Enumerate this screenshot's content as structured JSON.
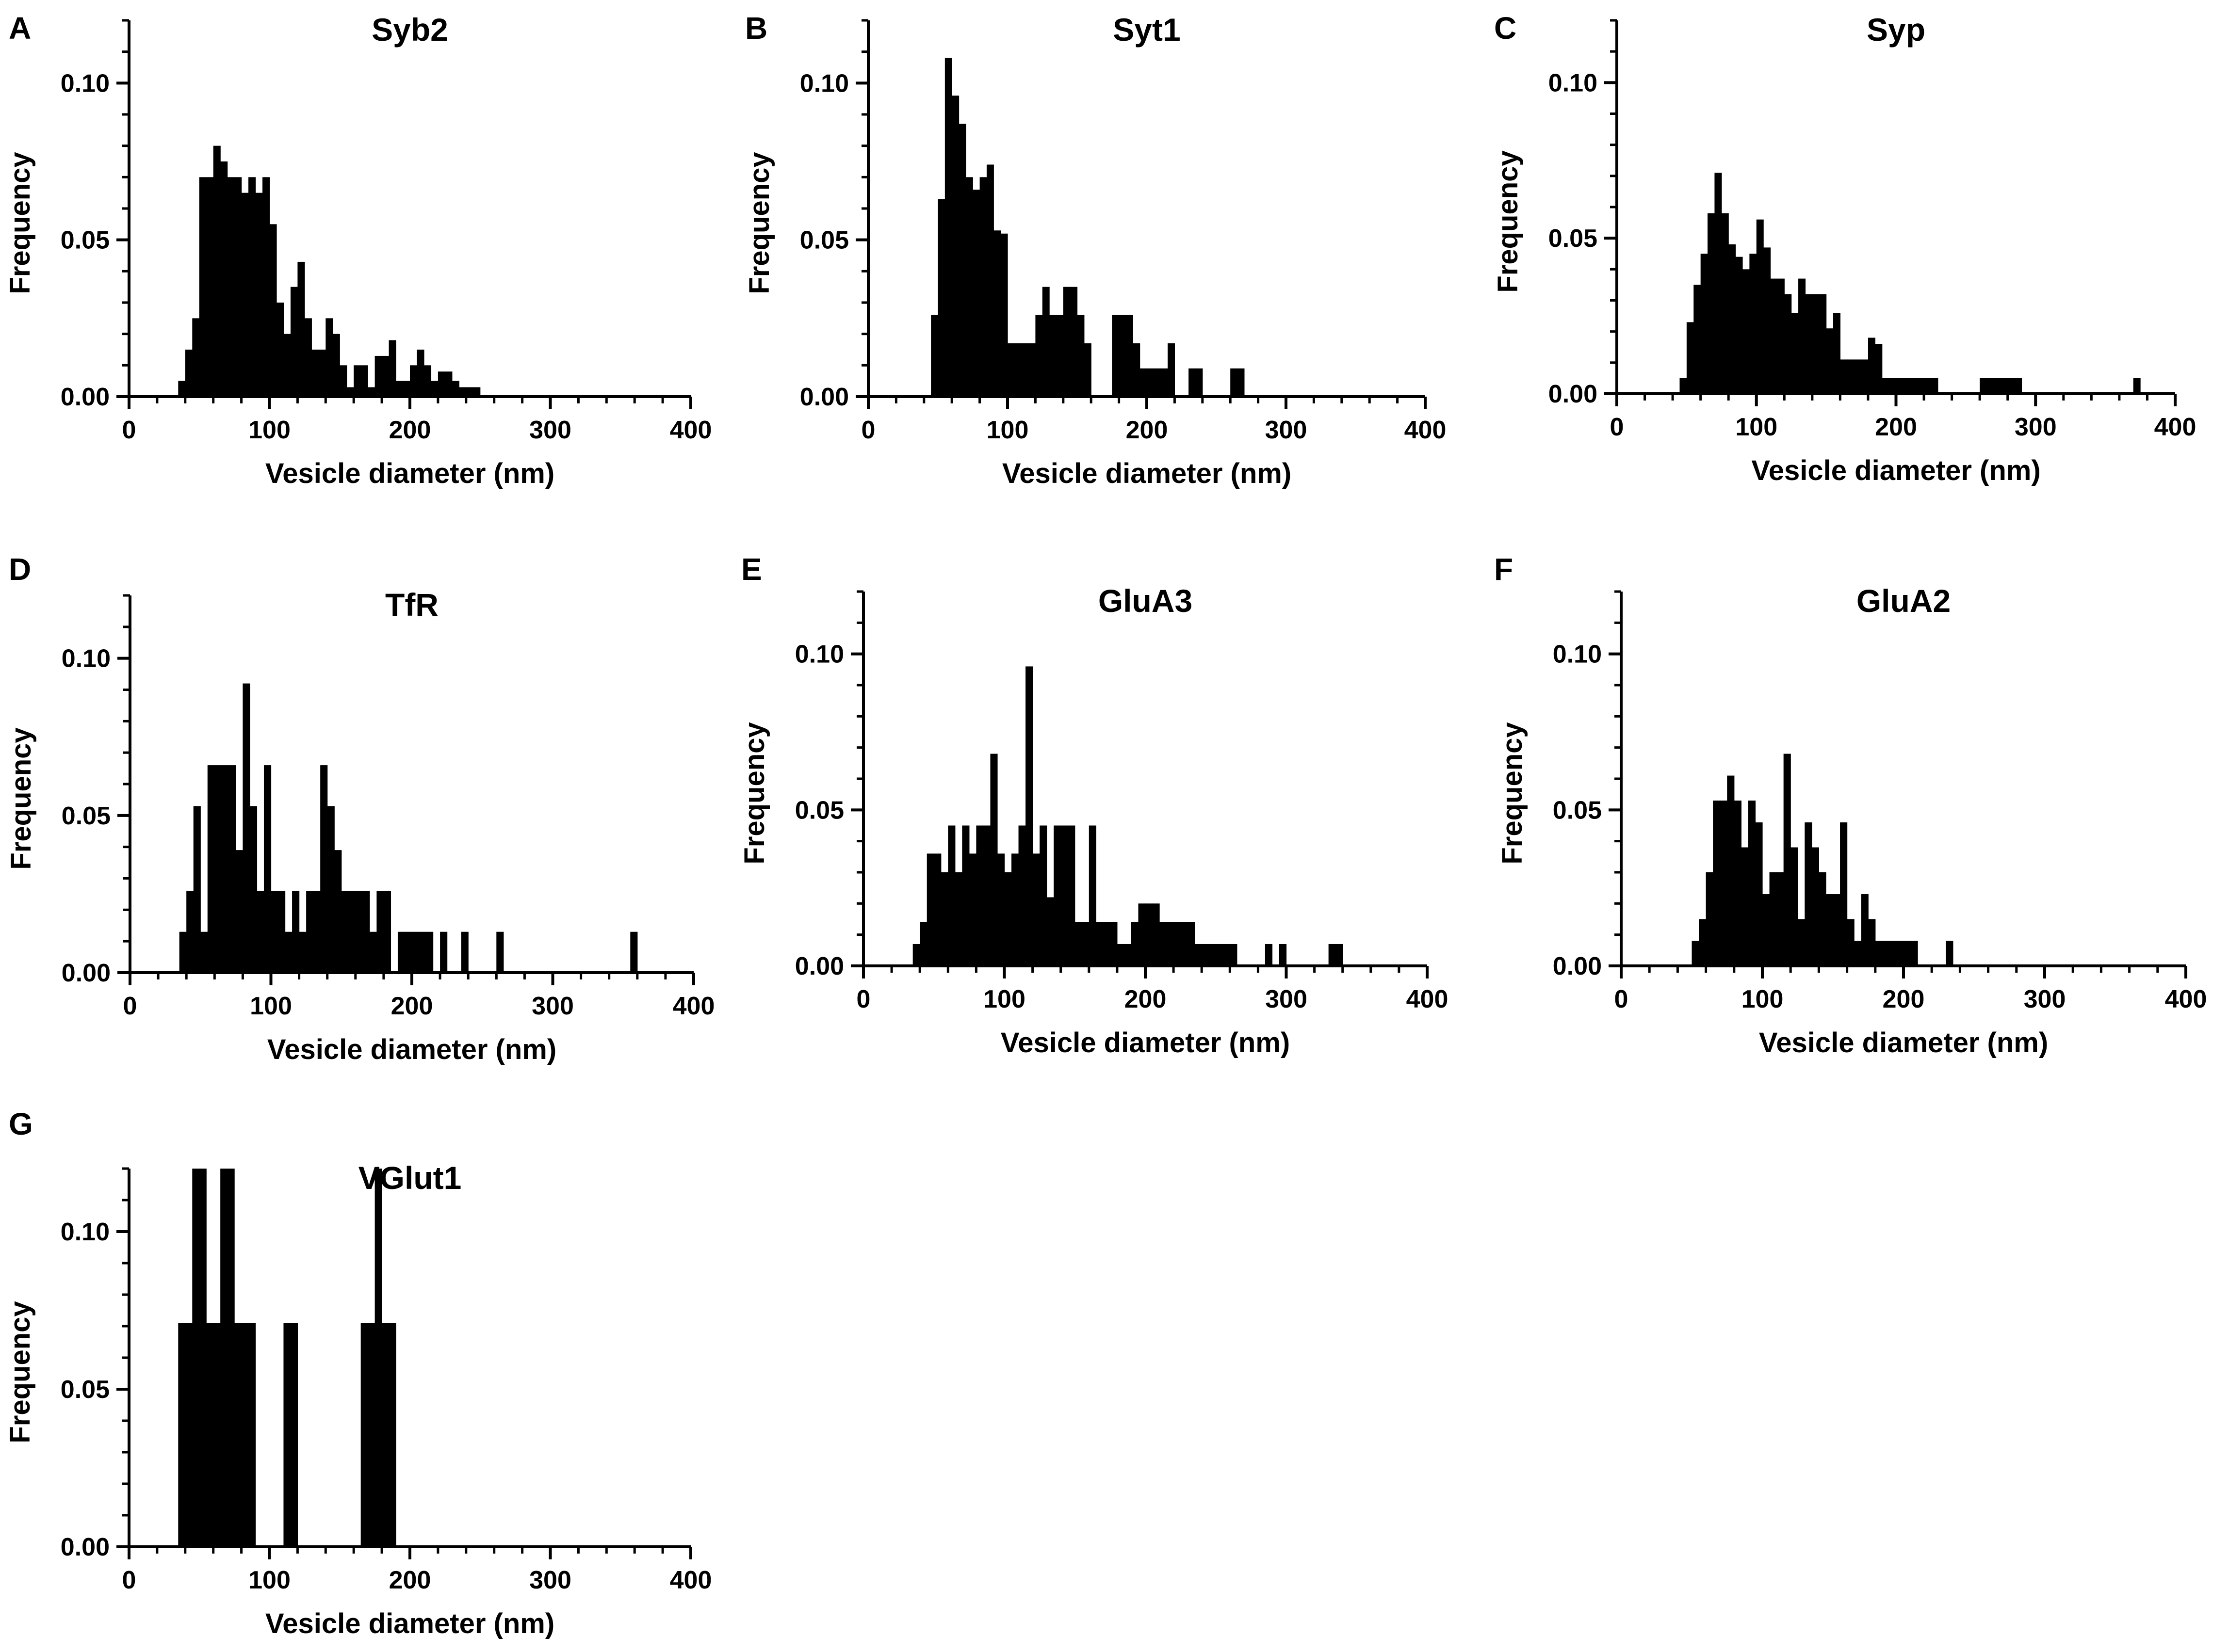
{
  "figure": {
    "background": "#ffffff",
    "bar_color": "#000000",
    "axis_color": "#000000"
  },
  "chart_data": [
    {
      "panel": "A",
      "title": "Syb2",
      "type": "bar",
      "xlabel": "Vesicle diameter (nm)",
      "ylabel": "Frequency",
      "xlim": [
        0,
        400
      ],
      "ylim": [
        0,
        0.12
      ],
      "xticks": [
        0,
        100,
        200,
        300,
        400
      ],
      "xtick_labels": [
        "0",
        "100",
        "200",
        "300",
        "400"
      ],
      "yticks": [
        0,
        0.05,
        0.1
      ],
      "ytick_labels": [
        "0.00",
        "0.05",
        "0.10"
      ],
      "bin_start": 35,
      "bin_width": 5,
      "values": [
        0.005,
        0.015,
        0.025,
        0.07,
        0.07,
        0.08,
        0.075,
        0.07,
        0.07,
        0.065,
        0.07,
        0.065,
        0.07,
        0.055,
        0.03,
        0.02,
        0.035,
        0.043,
        0.025,
        0.015,
        0.015,
        0.025,
        0.02,
        0.01,
        0.003,
        0.01,
        0.01,
        0.003,
        0.013,
        0.013,
        0.018,
        0.005,
        0.005,
        0.01,
        0.015,
        0.01,
        0.005,
        0.008,
        0.008,
        0.005,
        0.003,
        0.003,
        0.003
      ]
    },
    {
      "panel": "B",
      "title": "Syt1",
      "type": "bar",
      "xlabel": "Vesicle diameter (nm)",
      "ylabel": "Frequency",
      "xlim": [
        0,
        400
      ],
      "ylim": [
        0,
        0.12
      ],
      "xticks": [
        0,
        100,
        200,
        300,
        400
      ],
      "xtick_labels": [
        "0",
        "100",
        "200",
        "300",
        "400"
      ],
      "yticks": [
        0,
        0.05,
        0.1
      ],
      "ytick_labels": [
        "0.00",
        "0.05",
        "0.10"
      ],
      "bin_start": 45,
      "bin_width": 5,
      "values": [
        0.026,
        0.063,
        0.108,
        0.096,
        0.087,
        0.07,
        0.066,
        0.07,
        0.074,
        0.053,
        0.052,
        0.017,
        0.017,
        0.017,
        0.017,
        0.026,
        0.035,
        0.026,
        0.026,
        0.035,
        0.035,
        0.026,
        0.017,
        0.0,
        0.0,
        0.0,
        0.026,
        0.026,
        0.026,
        0.017,
        0.009,
        0.009,
        0.009,
        0.009,
        0.017,
        0.0,
        0.0,
        0.009,
        0.009,
        0.0,
        0.0,
        0.0,
        0.0,
        0.009,
        0.009
      ]
    },
    {
      "panel": "C",
      "title": "Syp",
      "type": "bar",
      "xlabel": "Vesicle diameter (nm)",
      "ylabel": "Frequency",
      "xlim": [
        0,
        400
      ],
      "ylim": [
        0,
        0.12
      ],
      "xticks": [
        0,
        100,
        200,
        300,
        400
      ],
      "xtick_labels": [
        "0",
        "100",
        "200",
        "300",
        "400"
      ],
      "yticks": [
        0,
        0.05,
        0.1
      ],
      "ytick_labels": [
        "0.00",
        "0.05",
        "0.10"
      ],
      "bin_start": 45,
      "bin_width": 5,
      "values": [
        0.005,
        0.023,
        0.035,
        0.045,
        0.058,
        0.071,
        0.058,
        0.048,
        0.044,
        0.04,
        0.045,
        0.056,
        0.047,
        0.037,
        0.037,
        0.032,
        0.026,
        0.037,
        0.032,
        0.032,
        0.032,
        0.021,
        0.026,
        0.011,
        0.011,
        0.011,
        0.011,
        0.018,
        0.016,
        0.005,
        0.005,
        0.005,
        0.005,
        0.005,
        0.005,
        0.005,
        0.005,
        0.0,
        0.0,
        0.0,
        0.0,
        0.0,
        0.0,
        0.005,
        0.005,
        0.005,
        0.005,
        0.005,
        0.005,
        0.0,
        0.0,
        0.0,
        0.0,
        0.0,
        0.0,
        0.0,
        0.0,
        0.0,
        0.0,
        0.0,
        0.0,
        0.0,
        0.0,
        0.0,
        0.0,
        0.005
      ]
    },
    {
      "panel": "D",
      "title": "TfR",
      "type": "bar",
      "xlabel": "Vesicle diameter (nm)",
      "ylabel": "Frequency",
      "xlim": [
        0,
        400
      ],
      "ylim": [
        0,
        0.12
      ],
      "xticks": [
        0,
        100,
        200,
        300,
        400
      ],
      "xtick_labels": [
        "0",
        "100",
        "200",
        "300",
        "400"
      ],
      "yticks": [
        0,
        0.05,
        0.1
      ],
      "ytick_labels": [
        "0.00",
        "0.05",
        "0.10"
      ],
      "bin_start": 35,
      "bin_width": 5,
      "values": [
        0.013,
        0.026,
        0.053,
        0.013,
        0.066,
        0.066,
        0.066,
        0.066,
        0.039,
        0.092,
        0.053,
        0.026,
        0.066,
        0.026,
        0.026,
        0.013,
        0.026,
        0.013,
        0.026,
        0.026,
        0.066,
        0.053,
        0.039,
        0.026,
        0.026,
        0.026,
        0.026,
        0.013,
        0.026,
        0.026,
        0.0,
        0.013,
        0.013,
        0.013,
        0.013,
        0.013,
        0.0,
        0.013,
        0.0,
        0.0,
        0.013,
        0.0,
        0.0,
        0.0,
        0.0,
        0.013,
        0.0,
        0.0,
        0.0,
        0.0,
        0.0,
        0.0,
        0.0,
        0.0,
        0.0,
        0.0,
        0.0,
        0.0,
        0.0,
        0.0,
        0.0,
        0.0,
        0.0,
        0.0,
        0.013
      ]
    },
    {
      "panel": "E",
      "title": "GluA3",
      "type": "bar",
      "xlabel": "Vesicle diameter (nm)",
      "ylabel": "Frequency",
      "xlim": [
        0,
        400
      ],
      "ylim": [
        0,
        0.12
      ],
      "xticks": [
        0,
        100,
        200,
        300,
        400
      ],
      "xtick_labels": [
        "0",
        "100",
        "200",
        "300",
        "400"
      ],
      "yticks": [
        0,
        0.05,
        0.1
      ],
      "ytick_labels": [
        "0.00",
        "0.05",
        "0.10"
      ],
      "bin_start": 35,
      "bin_width": 5,
      "values": [
        0.007,
        0.014,
        0.036,
        0.036,
        0.03,
        0.045,
        0.03,
        0.045,
        0.036,
        0.045,
        0.045,
        0.068,
        0.036,
        0.03,
        0.036,
        0.045,
        0.096,
        0.036,
        0.045,
        0.022,
        0.045,
        0.045,
        0.045,
        0.014,
        0.014,
        0.045,
        0.014,
        0.014,
        0.014,
        0.007,
        0.007,
        0.014,
        0.02,
        0.02,
        0.02,
        0.014,
        0.014,
        0.014,
        0.014,
        0.014,
        0.007,
        0.007,
        0.007,
        0.007,
        0.007,
        0.007,
        0.0,
        0.0,
        0.0,
        0.0,
        0.007,
        0.0,
        0.007,
        0.0,
        0.0,
        0.0,
        0.0,
        0.0,
        0.0,
        0.007,
        0.007
      ]
    },
    {
      "panel": "F",
      "title": "GluA2",
      "type": "bar",
      "xlabel": "Vesicle diameter (nm)",
      "ylabel": "Frequency",
      "xlim": [
        0,
        400
      ],
      "ylim": [
        0,
        0.12
      ],
      "xticks": [
        0,
        100,
        200,
        300,
        400
      ],
      "xtick_labels": [
        "0",
        "100",
        "200",
        "300",
        "400"
      ],
      "yticks": [
        0,
        0.05,
        0.1
      ],
      "ytick_labels": [
        "0.00",
        "0.05",
        "0.10"
      ],
      "bin_start": 50,
      "bin_width": 5,
      "values": [
        0.008,
        0.015,
        0.03,
        0.053,
        0.053,
        0.061,
        0.053,
        0.038,
        0.053,
        0.046,
        0.023,
        0.03,
        0.03,
        0.068,
        0.038,
        0.015,
        0.046,
        0.038,
        0.03,
        0.023,
        0.023,
        0.046,
        0.015,
        0.008,
        0.023,
        0.015,
        0.008,
        0.008,
        0.008,
        0.008,
        0.008,
        0.008,
        0.0,
        0.0,
        0.0,
        0.0,
        0.008
      ]
    },
    {
      "panel": "G",
      "title": "VGlut1",
      "type": "bar",
      "xlabel": "Vesicle diameter (nm)",
      "ylabel": "Frequency",
      "xlim": [
        0,
        400
      ],
      "ylim": [
        0,
        0.12
      ],
      "xticks": [
        0,
        100,
        200,
        300,
        400
      ],
      "xtick_labels": [
        "0",
        "100",
        "200",
        "300",
        "400"
      ],
      "yticks": [
        0,
        0.05,
        0.1
      ],
      "ytick_labels": [
        "0.00",
        "0.05",
        "0.10"
      ],
      "bin_start": 35,
      "bin_width": 5,
      "values": [
        0.071,
        0.071,
        0.12,
        0.12,
        0.071,
        0.071,
        0.12,
        0.12,
        0.071,
        0.071,
        0.071,
        0.0,
        0.0,
        0.0,
        0.0,
        0.071,
        0.071,
        0.0,
        0.0,
        0.0,
        0.0,
        0.0,
        0.0,
        0.0,
        0.0,
        0.0,
        0.071,
        0.071,
        0.12,
        0.071,
        0.071
      ]
    }
  ]
}
